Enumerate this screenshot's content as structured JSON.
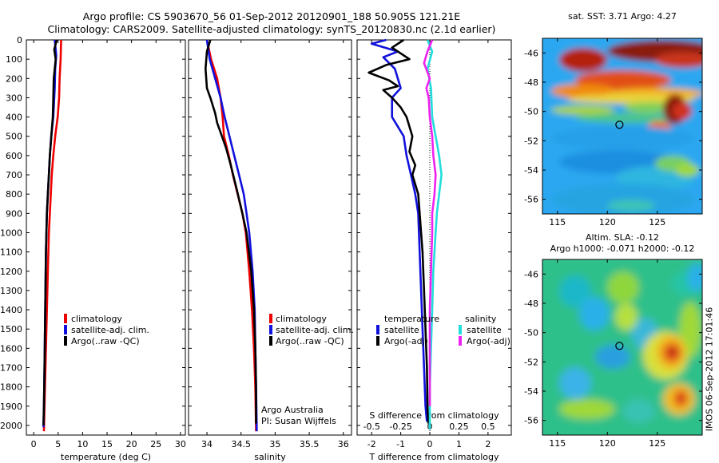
{
  "header": {
    "line1": "Argo profile: CS 5903670_56 01-Sep-2012 20120901_188 50.905S 121.21E",
    "line2": "Climatology: CARS2009. Satellite-adjusted climatology: synTS_20120830.nc (2.1d earlier)"
  },
  "depth_ticks": [
    "0",
    "100",
    "200",
    "300",
    "400",
    "500",
    "600",
    "700",
    "800",
    "900",
    "1000",
    "1100",
    "1200",
    "1300",
    "1400",
    "1500",
    "1600",
    "1700",
    "1800",
    "1900",
    "2000"
  ],
  "legend_profiles": [
    "climatology",
    "satellite-adj. clim.",
    "Argo(..raw -QC)"
  ],
  "legend_diff": {
    "temperature": "temperature",
    "salinity": "salinity",
    "t_items": [
      "satellite",
      "Argo(-adj)"
    ],
    "s_items": [
      "satellite",
      "Argo(-adj)"
    ]
  },
  "credit": {
    "line1": "Argo Australia",
    "line2": "PI: Susan Wijffels"
  },
  "colors": {
    "climatology": "#ee0000",
    "satellite": "#1111dd",
    "argo": "#000000",
    "sal_satellite": "#22dddd",
    "sal_argo": "#ee22ee"
  },
  "maps": {
    "sst_title": "sat. SST: 3.71  Argo: 4.27",
    "sla_title1": "Altim. SLA: -0.12",
    "sla_title2": "Argo h1000: -0.071 h2000: -0.12",
    "lat_ticks": [
      "-46",
      "-48",
      "-50",
      "-52",
      "-54",
      "-56"
    ],
    "lon_ticks": [
      "115",
      "120",
      "125"
    ],
    "stamp": "IMOS 06-Sep-2012 17:01:46"
  },
  "chart_data": [
    {
      "type": "line",
      "xlabel": "temperature (deg C)",
      "x_ticks": [
        "0",
        "5",
        "10",
        "15",
        "20",
        "25",
        "30"
      ],
      "xlim": [
        -1.5,
        31
      ],
      "ylim": [
        2050,
        0
      ],
      "series": [
        {
          "name": "climatology",
          "color": "#ee0000",
          "points": [
            [
              5.6,
              0
            ],
            [
              5.5,
              100
            ],
            [
              5.3,
              200
            ],
            [
              5.2,
              300
            ],
            [
              4.9,
              400
            ],
            [
              4.4,
              500
            ],
            [
              4.0,
              600
            ],
            [
              3.7,
              700
            ],
            [
              3.5,
              800
            ],
            [
              3.3,
              900
            ],
            [
              3.1,
              1000
            ],
            [
              2.9,
              1200
            ],
            [
              2.7,
              1400
            ],
            [
              2.6,
              1500
            ],
            [
              2.4,
              1700
            ],
            [
              2.3,
              1800
            ],
            [
              2.2,
              1900
            ],
            [
              2.1,
              2030
            ]
          ]
        },
        {
          "name": "satellite-adj. clim.",
          "color": "#1111dd",
          "points": [
            [
              4.3,
              0
            ],
            [
              4.6,
              80
            ],
            [
              4.4,
              150
            ],
            [
              4.3,
              250
            ],
            [
              4.0,
              400
            ],
            [
              3.6,
              500
            ],
            [
              3.3,
              600
            ],
            [
              3.1,
              700
            ],
            [
              2.9,
              800
            ],
            [
              2.7,
              900
            ],
            [
              2.5,
              1100
            ],
            [
              2.4,
              1300
            ],
            [
              2.3,
              1500
            ],
            [
              2.2,
              1700
            ],
            [
              2.1,
              1900
            ],
            [
              2.0,
              2010
            ]
          ]
        },
        {
          "name": "Argo(..raw -QC)",
          "color": "#000000",
          "points": [
            [
              4.7,
              0
            ],
            [
              4.2,
              50
            ],
            [
              4.5,
              100
            ],
            [
              4.3,
              150
            ],
            [
              4.1,
              200
            ],
            [
              4.0,
              300
            ],
            [
              3.9,
              400
            ],
            [
              3.6,
              500
            ],
            [
              3.3,
              600
            ],
            [
              3.1,
              700
            ],
            [
              2.9,
              800
            ],
            [
              2.7,
              900
            ],
            [
              2.5,
              1100
            ],
            [
              2.4,
              1300
            ],
            [
              2.3,
              1500
            ],
            [
              2.2,
              1700
            ],
            [
              2.1,
              1900
            ],
            [
              2.0,
              2000
            ]
          ]
        }
      ]
    },
    {
      "type": "line",
      "xlabel": "salinity",
      "x_ticks": [
        "34",
        "34.5",
        "35",
        "35.5",
        "36"
      ],
      "xlim": [
        33.73,
        36.12
      ],
      "ylim": [
        2050,
        0
      ],
      "series": [
        {
          "name": "climatology",
          "color": "#ee0000",
          "points": [
            [
              34.0,
              0
            ],
            [
              34.06,
              100
            ],
            [
              34.15,
              200
            ],
            [
              34.2,
              300
            ],
            [
              34.23,
              400
            ],
            [
              34.25,
              500
            ],
            [
              34.32,
              600
            ],
            [
              34.38,
              700
            ],
            [
              34.45,
              800
            ],
            [
              34.52,
              900
            ],
            [
              34.57,
              1000
            ],
            [
              34.62,
              1200
            ],
            [
              34.66,
              1400
            ],
            [
              34.69,
              1600
            ],
            [
              34.71,
              1800
            ],
            [
              34.72,
              2030
            ]
          ]
        },
        {
          "name": "satellite-adj. clim.",
          "color": "#1111dd",
          "points": [
            [
              34.0,
              0
            ],
            [
              34.04,
              100
            ],
            [
              34.12,
              200
            ],
            [
              34.2,
              300
            ],
            [
              34.26,
              400
            ],
            [
              34.33,
              500
            ],
            [
              34.4,
              600
            ],
            [
              34.47,
              700
            ],
            [
              34.54,
              800
            ],
            [
              34.58,
              900
            ],
            [
              34.62,
              1000
            ],
            [
              34.67,
              1200
            ],
            [
              34.7,
              1400
            ],
            [
              34.71,
              1600
            ],
            [
              34.72,
              1800
            ],
            [
              34.73,
              2030
            ]
          ]
        },
        {
          "name": "Argo(..raw -QC)",
          "color": "#000000",
          "points": [
            [
              34.05,
              0
            ],
            [
              34.0,
              60
            ],
            [
              33.98,
              150
            ],
            [
              34.0,
              250
            ],
            [
              34.05,
              300
            ],
            [
              34.12,
              380
            ],
            [
              34.15,
              430
            ],
            [
              34.22,
              500
            ],
            [
              34.28,
              560
            ],
            [
              34.35,
              650
            ],
            [
              34.44,
              780
            ],
            [
              34.52,
              900
            ],
            [
              34.58,
              1000
            ],
            [
              34.65,
              1200
            ],
            [
              34.69,
              1400
            ],
            [
              34.71,
              1600
            ],
            [
              34.72,
              1800
            ],
            [
              34.72,
              1990
            ]
          ]
        }
      ]
    },
    {
      "type": "line",
      "xlabel": "T difference from climatology",
      "x_ticks": [
        "-2",
        "-1",
        "0",
        "1",
        "2"
      ],
      "top_label": "S difference from climatology",
      "top_ticks": [
        "-0.5",
        "-0.25",
        "0",
        "0.25",
        "0.5"
      ],
      "xlim": [
        -2.5,
        2.8
      ],
      "top_xlim": [
        -0.625,
        0.7
      ],
      "ylim": [
        2050,
        0
      ],
      "series": [
        {
          "name": "temperature satellite",
          "axis": "T",
          "color": "#1111dd",
          "points": [
            [
              -1.5,
              0
            ],
            [
              -2.0,
              20
            ],
            [
              -1.1,
              60
            ],
            [
              -1.6,
              90
            ],
            [
              -1.2,
              150
            ],
            [
              -1.0,
              250
            ],
            [
              -1.3,
              300
            ],
            [
              -1.3,
              400
            ],
            [
              -0.9,
              500
            ],
            [
              -0.8,
              600
            ],
            [
              -0.65,
              700
            ],
            [
              -0.5,
              800
            ],
            [
              -0.4,
              900
            ],
            [
              -0.35,
              1100
            ],
            [
              -0.3,
              1300
            ],
            [
              -0.25,
              1500
            ],
            [
              -0.2,
              1700
            ],
            [
              -0.15,
              1900
            ],
            [
              -0.1,
              1980
            ]
          ]
        },
        {
          "name": "temperature Argo(-adj)",
          "axis": "T",
          "color": "#000000",
          "points": [
            [
              -0.9,
              0
            ],
            [
              -1.3,
              40
            ],
            [
              -0.7,
              100
            ],
            [
              -1.5,
              130
            ],
            [
              -2.1,
              170
            ],
            [
              -1.4,
              210
            ],
            [
              -1.1,
              240
            ],
            [
              -1.6,
              260
            ],
            [
              -1.3,
              300
            ],
            [
              -1.0,
              350
            ],
            [
              -0.8,
              400
            ],
            [
              -0.6,
              500
            ],
            [
              -0.7,
              580
            ],
            [
              -0.5,
              650
            ],
            [
              -0.6,
              700
            ],
            [
              -0.4,
              800
            ],
            [
              -0.35,
              900
            ],
            [
              -0.25,
              1100
            ],
            [
              -0.2,
              1300
            ],
            [
              -0.15,
              1500
            ],
            [
              -0.1,
              1700
            ],
            [
              -0.08,
              1900
            ],
            [
              -0.05,
              1990
            ]
          ]
        },
        {
          "name": "salinity satellite",
          "axis": "S",
          "color": "#22dddd",
          "points": [
            [
              -0.02,
              0
            ],
            [
              0.02,
              60
            ],
            [
              -0.02,
              150
            ],
            [
              0.01,
              250
            ],
            [
              0.02,
              400
            ],
            [
              0.05,
              500
            ],
            [
              0.08,
              600
            ],
            [
              0.1,
              700
            ],
            [
              0.08,
              800
            ],
            [
              0.06,
              900
            ],
            [
              0.05,
              1000
            ],
            [
              0.03,
              1200
            ],
            [
              0.02,
              1400
            ],
            [
              0.01,
              1600
            ],
            [
              0.0,
              1800
            ],
            [
              0.0,
              2020
            ]
          ]
        },
        {
          "name": "salinity Argo(-adj)",
          "axis": "S",
          "color": "#ee22ee",
          "points": [
            [
              0.02,
              0
            ],
            [
              -0.02,
              60
            ],
            [
              -0.05,
              120
            ],
            [
              0.0,
              200
            ],
            [
              -0.03,
              250
            ],
            [
              -0.01,
              300
            ],
            [
              0.0,
              400
            ],
            [
              0.02,
              500
            ],
            [
              0.03,
              600
            ],
            [
              0.05,
              700
            ],
            [
              0.04,
              800
            ],
            [
              0.02,
              900
            ],
            [
              0.02,
              1000
            ],
            [
              0.01,
              1200
            ],
            [
              0.0,
              1400
            ],
            [
              0.0,
              1600
            ],
            [
              0.0,
              1800
            ],
            [
              0.0,
              1900
            ]
          ]
        }
      ]
    },
    {
      "type": "heatmap",
      "title": "sat. SST: 3.71  Argo: 4.27",
      "x_ticks": [
        "115",
        "120",
        "125"
      ],
      "y_ticks": [
        "-46",
        "-48",
        "-50",
        "-52",
        "-54",
        "-56"
      ],
      "xlim": [
        113.5,
        129.5
      ],
      "ylim": [
        -57,
        -45
      ],
      "argo_position": [
        121.21,
        -50.905
      ]
    },
    {
      "type": "heatmap",
      "title": "Altim. SLA: -0.12",
      "x_ticks": [
        "115",
        "120",
        "125"
      ],
      "y_ticks": [
        "-46",
        "-48",
        "-50",
        "-52",
        "-54",
        "-56"
      ],
      "xlim": [
        113.5,
        129.5
      ],
      "ylim": [
        -57,
        -45
      ],
      "argo_position": [
        121.21,
        -50.905
      ]
    }
  ]
}
